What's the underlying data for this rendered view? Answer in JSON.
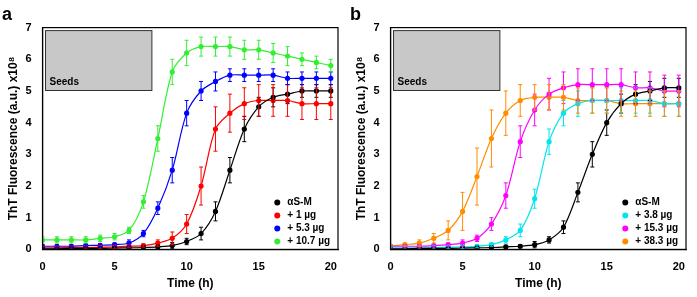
{
  "chart_data": [
    {
      "type": "line",
      "title": "a",
      "x_label": "Time (h)",
      "y_label": "ThT Fluorescence (a.u.) x10⁸",
      "annotations": [
        "Seeds"
      ],
      "x": [
        0,
        1,
        2,
        3,
        4,
        5,
        6,
        7,
        8,
        9,
        10,
        11,
        12,
        13,
        14,
        15,
        16,
        17,
        18,
        19,
        20
      ],
      "xlim": [
        0,
        20.5
      ],
      "xticks": [
        0,
        5,
        10,
        15,
        20
      ],
      "ylim": [
        0,
        7
      ],
      "yticks": [
        0,
        1,
        2,
        3,
        4,
        5,
        6,
        7
      ],
      "grid": false,
      "legend": "lower right",
      "series": [
        {
          "name": "αS-M",
          "color": "#000000",
          "marker": "circle",
          "values": [
            0.02,
            0.02,
            0.03,
            0.03,
            0.03,
            0.04,
            0.05,
            0.06,
            0.08,
            0.12,
            0.25,
            0.5,
            1.2,
            2.5,
            3.8,
            4.5,
            4.8,
            4.9,
            5.0,
            5.0,
            5.0
          ],
          "errors": [
            0.05,
            0.05,
            0.05,
            0.05,
            0.05,
            0.05,
            0.05,
            0.05,
            0.05,
            0.1,
            0.1,
            0.2,
            0.3,
            0.4,
            0.4,
            0.3,
            0.3,
            0.3,
            0.2,
            0.2,
            0.2
          ]
        },
        {
          "name": "+ 1 µg",
          "color": "#ff0000",
          "marker": "circle",
          "values": [
            0.05,
            0.05,
            0.06,
            0.06,
            0.07,
            0.08,
            0.1,
            0.12,
            0.2,
            0.35,
            0.8,
            2.0,
            3.8,
            4.3,
            4.6,
            4.7,
            4.7,
            4.7,
            4.6,
            4.6,
            4.6
          ],
          "errors": [
            0.05,
            0.05,
            0.05,
            0.05,
            0.05,
            0.05,
            0.05,
            0.05,
            0.1,
            0.2,
            0.3,
            0.6,
            0.7,
            0.6,
            0.5,
            0.5,
            0.5,
            0.5,
            0.5,
            0.5,
            0.5
          ]
        },
        {
          "name": "+ 5.3 µg",
          "color": "#0000ff",
          "marker": "circle",
          "values": [
            0.1,
            0.1,
            0.1,
            0.12,
            0.13,
            0.15,
            0.2,
            0.5,
            1.3,
            2.5,
            4.3,
            5.0,
            5.3,
            5.5,
            5.5,
            5.5,
            5.5,
            5.4,
            5.4,
            5.4,
            5.4
          ],
          "errors": [
            0.05,
            0.05,
            0.05,
            0.05,
            0.05,
            0.05,
            0.1,
            0.1,
            0.2,
            0.4,
            0.4,
            0.3,
            0.3,
            0.2,
            0.2,
            0.2,
            0.2,
            0.2,
            0.2,
            0.2,
            0.2
          ]
        },
        {
          "name": "+ 10.7 µg",
          "color": "#33ee33",
          "marker": "circle",
          "values": [
            0.3,
            0.3,
            0.3,
            0.3,
            0.35,
            0.4,
            0.6,
            1.5,
            3.5,
            5.6,
            6.2,
            6.4,
            6.4,
            6.4,
            6.3,
            6.3,
            6.2,
            6.1,
            6.0,
            5.9,
            5.8
          ],
          "errors": [
            0.1,
            0.1,
            0.1,
            0.1,
            0.1,
            0.1,
            0.1,
            0.2,
            0.4,
            0.4,
            0.4,
            0.3,
            0.3,
            0.3,
            0.3,
            0.3,
            0.3,
            0.3,
            0.2,
            0.2,
            0.2
          ]
        }
      ]
    },
    {
      "type": "line",
      "title": "b",
      "x_label": "Time (h)",
      "y_label": "ThT Fluorescence (a.u.) x10⁸",
      "annotations": [
        "Seeds"
      ],
      "x": [
        0,
        1,
        2,
        3,
        4,
        5,
        6,
        7,
        8,
        9,
        10,
        11,
        12,
        13,
        14,
        15,
        16,
        17,
        18,
        19,
        20
      ],
      "xlim": [
        0,
        20.5
      ],
      "xticks": [
        0,
        5,
        10,
        15,
        20
      ],
      "ylim": [
        0,
        7
      ],
      "yticks": [
        0,
        1,
        2,
        3,
        4,
        5,
        6,
        7
      ],
      "grid": false,
      "legend": "lower right",
      "series": [
        {
          "name": "αS-M",
          "color": "#000000",
          "marker": "circle",
          "values": [
            0.02,
            0.02,
            0.03,
            0.03,
            0.03,
            0.04,
            0.05,
            0.06,
            0.08,
            0.1,
            0.15,
            0.3,
            0.7,
            1.8,
            3.0,
            4.0,
            4.6,
            4.9,
            5.0,
            5.1,
            5.1
          ],
          "errors": [
            0.05,
            0.05,
            0.05,
            0.05,
            0.05,
            0.05,
            0.05,
            0.05,
            0.05,
            0.05,
            0.1,
            0.1,
            0.2,
            0.3,
            0.4,
            0.4,
            0.3,
            0.3,
            0.3,
            0.3,
            0.3
          ]
        },
        {
          "name": "+ 3.8 µg",
          "color": "#00e5ee",
          "marker": "circle",
          "values": [
            0.05,
            0.05,
            0.05,
            0.06,
            0.07,
            0.08,
            0.1,
            0.15,
            0.3,
            0.6,
            1.6,
            3.4,
            4.3,
            4.6,
            4.7,
            4.7,
            4.7,
            4.7,
            4.7,
            4.6,
            4.6
          ],
          "errors": [
            0.05,
            0.05,
            0.05,
            0.05,
            0.05,
            0.05,
            0.05,
            0.05,
            0.1,
            0.2,
            0.3,
            0.4,
            0.4,
            0.4,
            0.4,
            0.4,
            0.4,
            0.4,
            0.4,
            0.4,
            0.4
          ]
        },
        {
          "name": "+ 15.3 µg",
          "color": "#ff00ff",
          "marker": "circle",
          "values": [
            0.1,
            0.1,
            0.1,
            0.12,
            0.15,
            0.2,
            0.35,
            0.8,
            1.7,
            3.4,
            4.4,
            4.9,
            5.1,
            5.2,
            5.2,
            5.2,
            5.2,
            5.1,
            5.1,
            5.0,
            5.0
          ],
          "errors": [
            0.05,
            0.05,
            0.05,
            0.05,
            0.05,
            0.1,
            0.1,
            0.2,
            0.4,
            0.5,
            0.5,
            0.5,
            0.5,
            0.5,
            0.5,
            0.5,
            0.5,
            0.5,
            0.5,
            0.5,
            0.5
          ]
        },
        {
          "name": "+ 38.3 µg",
          "color": "#ff8c00",
          "marker": "circle",
          "values": [
            0.1,
            0.15,
            0.2,
            0.35,
            0.6,
            1.2,
            2.3,
            3.5,
            4.3,
            4.7,
            4.8,
            4.8,
            4.8,
            4.7,
            4.7,
            4.7,
            4.6,
            4.6,
            4.6,
            4.6,
            4.6
          ],
          "errors": [
            0.05,
            0.05,
            0.1,
            0.15,
            0.3,
            0.6,
            0.9,
            0.9,
            0.7,
            0.5,
            0.4,
            0.4,
            0.4,
            0.4,
            0.4,
            0.4,
            0.4,
            0.4,
            0.4,
            0.4,
            0.4
          ]
        }
      ]
    }
  ]
}
